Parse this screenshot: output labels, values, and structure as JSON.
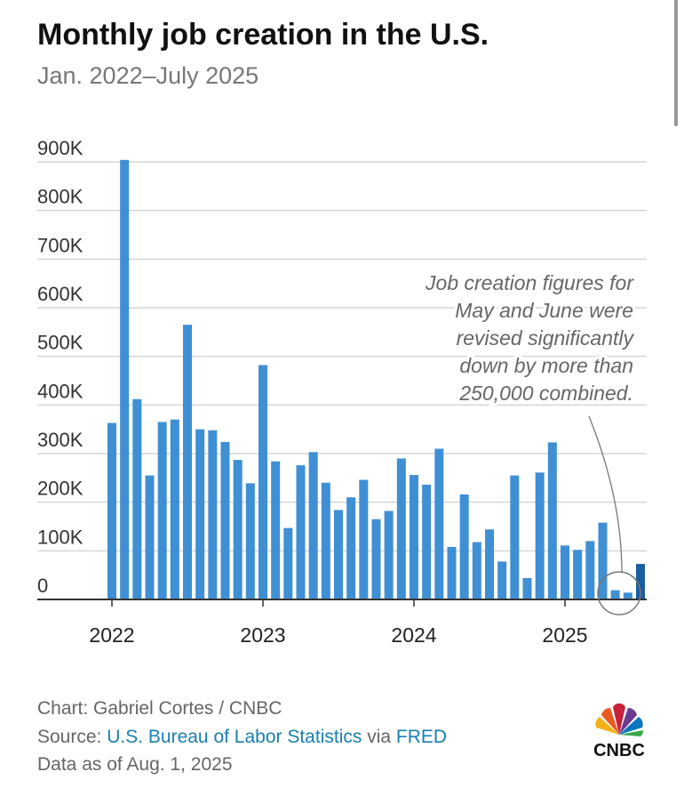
{
  "chart_data": {
    "type": "bar",
    "title": "Monthly job creation in the U.S.",
    "subtitle": "Jan. 2022–July 2025",
    "categories": [
      "2022",
      null,
      null,
      null,
      null,
      null,
      null,
      null,
      null,
      null,
      null,
      null,
      "2023",
      null,
      null,
      null,
      null,
      null,
      null,
      null,
      null,
      null,
      null,
      null,
      "2024",
      null,
      null,
      null,
      null,
      null,
      null,
      null,
      null,
      null,
      null,
      null,
      "2025",
      null,
      null,
      null,
      null,
      null,
      null
    ],
    "values": [
      363000,
      904000,
      412000,
      255000,
      365000,
      370000,
      565000,
      350000,
      348000,
      324000,
      287000,
      239000,
      482000,
      284000,
      147000,
      276000,
      303000,
      240000,
      184000,
      210000,
      246000,
      165000,
      182000,
      290000,
      256000,
      236000,
      310000,
      108000,
      216000,
      118000,
      144000,
      78000,
      255000,
      44000,
      261000,
      323000,
      111000,
      102000,
      120000,
      158000,
      19000,
      14000,
      73000
    ],
    "colors": [
      "#3f8fd4",
      "#3f8fd4",
      "#3f8fd4",
      "#3f8fd4",
      "#3f8fd4",
      "#3f8fd4",
      "#3f8fd4",
      "#3f8fd4",
      "#3f8fd4",
      "#3f8fd4",
      "#3f8fd4",
      "#3f8fd4",
      "#3f8fd4",
      "#3f8fd4",
      "#3f8fd4",
      "#3f8fd4",
      "#3f8fd4",
      "#3f8fd4",
      "#3f8fd4",
      "#3f8fd4",
      "#3f8fd4",
      "#3f8fd4",
      "#3f8fd4",
      "#3f8fd4",
      "#3f8fd4",
      "#3f8fd4",
      "#3f8fd4",
      "#3f8fd4",
      "#3f8fd4",
      "#3f8fd4",
      "#3f8fd4",
      "#3f8fd4",
      "#3f8fd4",
      "#3f8fd4",
      "#3f8fd4",
      "#3f8fd4",
      "#3f8fd4",
      "#3f8fd4",
      "#3f8fd4",
      "#3f8fd4",
      "#3f8fd4",
      "#3f8fd4",
      "#1b5e9e"
    ],
    "ylim": [
      0,
      900000
    ],
    "yticks": [
      0,
      {
        "value": 100000,
        "label": "100K"
      },
      {
        "value": 200000,
        "label": "200K"
      },
      {
        "value": 300000,
        "label": "300K"
      },
      {
        "value": 400000,
        "label": "400K"
      },
      {
        "value": 500000,
        "label": "500K"
      },
      {
        "value": 600000,
        "label": "600K"
      },
      {
        "value": 700000,
        "label": "700K"
      },
      {
        "value": 800000,
        "label": "800K"
      },
      {
        "value": 900000,
        "label": "900K"
      }
    ],
    "grid": true,
    "annotation": [
      "Job creation figures for",
      "May and June were",
      "revised significantly",
      "down by more than",
      "250,000 combined."
    ]
  },
  "footer": {
    "credit": "Chart: Gabriel Cortes / CNBC",
    "source_label": "Source:",
    "source_link": "U.S. Bureau of Labor Statistics",
    "via": "via",
    "source_link2": "FRED",
    "date": "Data as of Aug. 1, 2025",
    "logo": "CNBC"
  }
}
